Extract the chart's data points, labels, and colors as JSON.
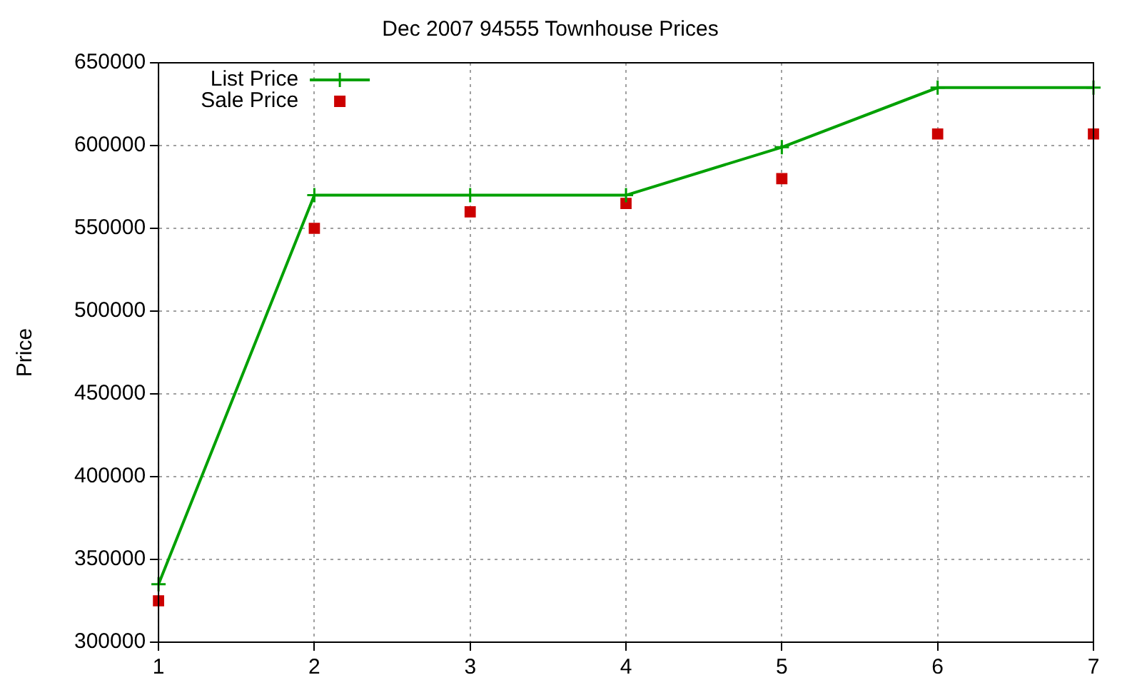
{
  "chart_data": {
    "type": "line",
    "title": "Dec 2007 94555 Townhouse Prices",
    "ylabel": "Price",
    "x": [
      1,
      2,
      3,
      4,
      5,
      6,
      7
    ],
    "series": [
      {
        "name": "List Price",
        "color": "#00a000",
        "type": "line",
        "marker": "cross",
        "values": [
          335000,
          570000,
          570000,
          570000,
          599000,
          635000,
          635000
        ]
      },
      {
        "name": "Sale Price",
        "color": "#cc0000",
        "type": "scatter",
        "marker": "square",
        "values": [
          325000,
          550000,
          560000,
          565000,
          580000,
          607000,
          607000
        ]
      }
    ],
    "xlim": [
      1,
      7
    ],
    "xticks": [
      1,
      2,
      3,
      4,
      5,
      6,
      7
    ],
    "ylim": [
      300000,
      650000
    ],
    "yticks": [
      300000,
      350000,
      400000,
      450000,
      500000,
      550000,
      600000,
      650000
    ],
    "grid": true,
    "legend": "top left"
  }
}
